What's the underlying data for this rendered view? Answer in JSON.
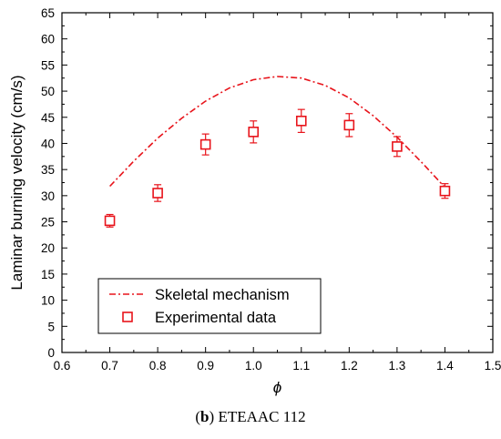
{
  "caption": {
    "bold": "b",
    "rest": "ETEAAC 112"
  },
  "chart_data": {
    "type": "scatter",
    "title": "",
    "xlabel": "ϕ",
    "ylabel": "Laminar burning velocity (cm/s)",
    "xlim": [
      0.6,
      1.5
    ],
    "ylim": [
      0,
      65
    ],
    "xticks": [
      0.6,
      0.7,
      0.8,
      0.9,
      1.0,
      1.1,
      1.2,
      1.3,
      1.4,
      1.5
    ],
    "yticks": [
      0,
      5,
      10,
      15,
      20,
      25,
      30,
      35,
      40,
      45,
      50,
      55,
      60,
      65
    ],
    "xtick_labels": [
      "0.6",
      "0.7",
      "0.8",
      "0.9",
      "1.0",
      "1.1",
      "1.2",
      "1.3",
      "1.4",
      "1.5"
    ],
    "ytick_labels": [
      "0",
      "5",
      "10",
      "15",
      "20",
      "25",
      "30",
      "35",
      "40",
      "45",
      "50",
      "55",
      "60",
      "65"
    ],
    "grid": false,
    "legend_position": "bottom-left",
    "colors": {
      "series": "#e8141b",
      "axis": "#000000"
    },
    "series": [
      {
        "name": "Skeletal mechanism",
        "style": "dash-dot-line",
        "x": [
          0.7,
          0.75,
          0.8,
          0.85,
          0.9,
          0.95,
          1.0,
          1.05,
          1.1,
          1.15,
          1.2,
          1.25,
          1.3,
          1.35,
          1.4
        ],
        "y": [
          31.8,
          36.6,
          41.0,
          44.8,
          48.1,
          50.6,
          52.2,
          52.8,
          52.5,
          51.1,
          48.7,
          45.3,
          41.2,
          36.5,
          31.6
        ]
      },
      {
        "name": "Experimental data",
        "style": "open-square-markers-with-error-bars",
        "x": [
          0.7,
          0.8,
          0.9,
          1.0,
          1.1,
          1.2,
          1.3,
          1.4
        ],
        "y": [
          25.2,
          30.5,
          39.8,
          42.2,
          44.3,
          43.5,
          39.4,
          30.9
        ],
        "err": [
          1.2,
          1.6,
          2.0,
          2.1,
          2.2,
          2.2,
          1.9,
          1.4
        ]
      }
    ]
  }
}
